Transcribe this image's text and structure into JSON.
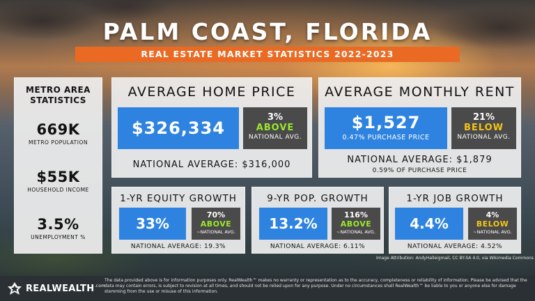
{
  "title": "PALM COAST, FLORIDA",
  "subtitle": "REAL ESTATE MARKET STATISTICS 2022-2023",
  "metro": {
    "heading_line1": "METRO AREA",
    "heading_line2": "STATISTICS",
    "population_value": "669K",
    "population_label": "METRO POPULATION",
    "income_value": "$55K",
    "income_label": "HOUSEHOLD INCOME",
    "unemployment_value": "3.5%",
    "unemployment_label": "UNEMPLOYMENT %"
  },
  "home_price": {
    "title": "AVERAGE HOME PRICE",
    "value": "$326,334",
    "pct": "3%",
    "direction": "ABOVE",
    "compare": "NATIONAL AVG.",
    "national": "NATIONAL AVERAGE: $316,000"
  },
  "rent": {
    "title": "AVERAGE MONTHLY RENT",
    "value": "$1,527",
    "sub": "0.47% PURCHASE PRICE",
    "pct": "21%",
    "direction": "BELOW",
    "compare": "NATIONAL AVG.",
    "national": "NATIONAL AVERAGE: $1,879",
    "national_sub": "0.59% OF PURCHASE PRICE"
  },
  "equity": {
    "title": "1-YR EQUITY GROWTH",
    "value": "33%",
    "pct": "70%",
    "direction": "ABOVE",
    "compare": "~NATIONAL AVG.",
    "national": "NATIONAL AVERAGE: 19.3%"
  },
  "population": {
    "title": "9-YR POP. GROWTH",
    "value": "13.2%",
    "pct": "116%",
    "direction": "ABOVE",
    "compare": "~NATIONAL AVG.",
    "national": "NATIONAL AVERAGE: 6.11%"
  },
  "jobs": {
    "title": "1-YR JOB GROWTH",
    "value": "4.4%",
    "pct": "4%",
    "direction": "BELOW",
    "compare": "~NATIONAL AVG.",
    "national": "NATIONAL AVERAGE: 4.52%"
  },
  "attribution": "Image Attribution: AndyHalleigmail, CC BY-SA 4.0, via Wikimedia Commons",
  "logo": {
    "name": "REALWEALTH",
    "suffix": ".com"
  },
  "disclaimer": "The data provided above is for information purposes only. RealWealth™ makes no warranty or representation as to the accuracy, completeness or reliability of information. Please be advised that the data may contain errors, is subject to revision at all times, and should not be relied upon for any purpose. Under no circumstances shall RealWealth™ be liable to you or anyone else for damage stemming from the use or misuse of this information.",
  "colors": {
    "accent_orange": "#ea6a24",
    "value_blue": "#2f83e0",
    "above_green": "#9be82a",
    "below_yellow": "#f5c518",
    "dark_box": "#4a4a4a"
  }
}
